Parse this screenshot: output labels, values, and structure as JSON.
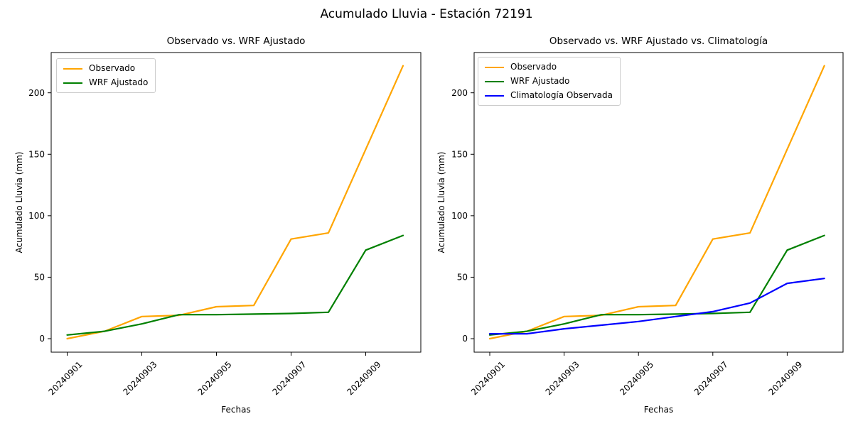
{
  "figure": {
    "suptitle": "Acumulado Lluvia - Estación 72191"
  },
  "chart_data": [
    {
      "type": "line",
      "title": "Observado vs. WRF Ajustado",
      "xlabel": "Fechas",
      "ylabel": "Acumulado Lluvia (mm)",
      "x": [
        "20240901",
        "20240902",
        "20240903",
        "20240904",
        "20240905",
        "20240906",
        "20240907",
        "20240908",
        "20240909",
        "20240910"
      ],
      "x_tick_indices": [
        0,
        2,
        4,
        6,
        8
      ],
      "x_tick_labels": [
        "20240901",
        "20240903",
        "20240905",
        "20240907",
        "20240909"
      ],
      "y_ticks": [
        0,
        50,
        100,
        150,
        200
      ],
      "ylim": [
        -11,
        233
      ],
      "grid": false,
      "legend_position": "upper-left",
      "series": [
        {
          "name": "Observado",
          "color": "#FFA500",
          "values": [
            0,
            6,
            18,
            19,
            26,
            27,
            81,
            86,
            154,
            222
          ]
        },
        {
          "name": "WRF Ajustado",
          "color": "#008000",
          "values": [
            3,
            6,
            12,
            19.5,
            19.5,
            20,
            20.5,
            21.5,
            72,
            84
          ]
        }
      ]
    },
    {
      "type": "line",
      "title": "Observado vs. WRF Ajustado vs. Climatología",
      "xlabel": "Fechas",
      "ylabel": "Acumulado Lluvia (mm)",
      "x": [
        "20240901",
        "20240902",
        "20240903",
        "20240904",
        "20240905",
        "20240906",
        "20240907",
        "20240908",
        "20240909",
        "20240910"
      ],
      "x_tick_indices": [
        0,
        2,
        4,
        6,
        8
      ],
      "x_tick_labels": [
        "20240901",
        "20240903",
        "20240905",
        "20240907",
        "20240909"
      ],
      "y_ticks": [
        0,
        50,
        100,
        150,
        200
      ],
      "ylim": [
        -11,
        233
      ],
      "grid": false,
      "legend_position": "upper-left",
      "series": [
        {
          "name": "Observado",
          "color": "#FFA500",
          "values": [
            0,
            6,
            18,
            19,
            26,
            27,
            81,
            86,
            154,
            222
          ]
        },
        {
          "name": "WRF Ajustado",
          "color": "#008000",
          "values": [
            3,
            6,
            12,
            19.5,
            19.5,
            20,
            20.5,
            21.5,
            72,
            84
          ]
        },
        {
          "name": "Climatología Observada",
          "color": "#0000FF",
          "values": [
            4,
            4,
            8,
            11,
            14,
            18,
            22,
            29,
            45,
            49
          ]
        }
      ]
    }
  ]
}
